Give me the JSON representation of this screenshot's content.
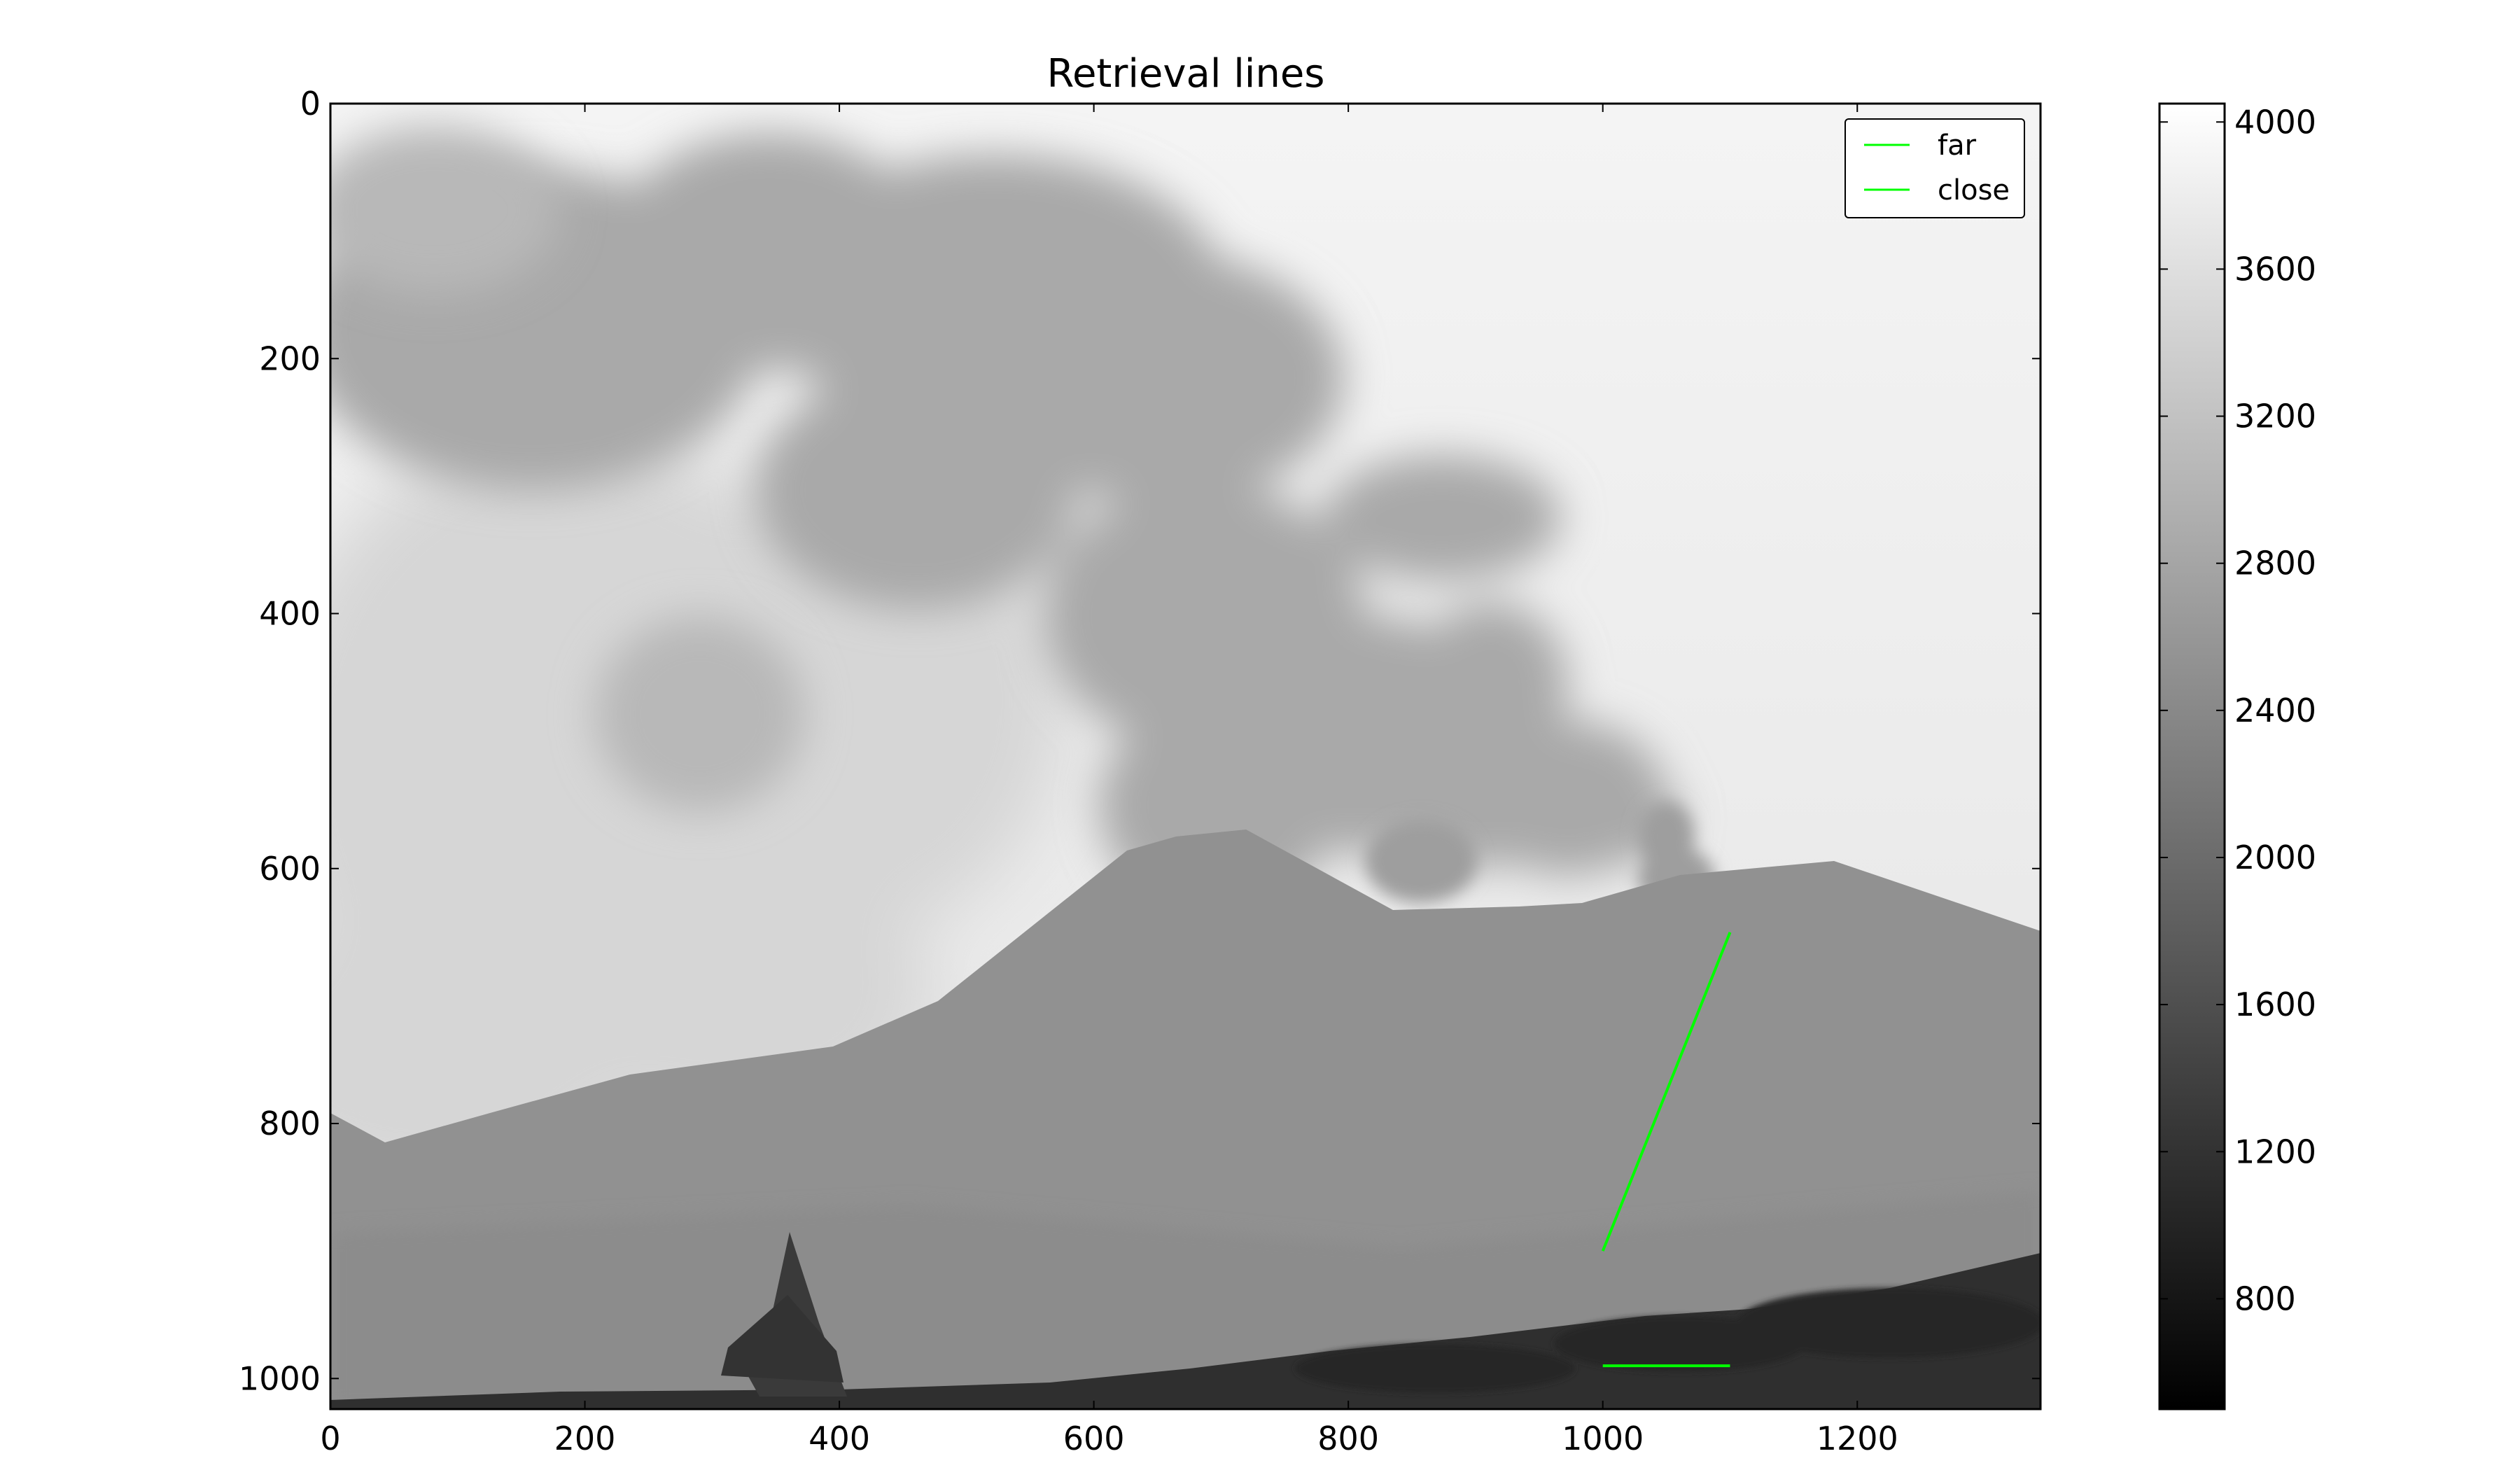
{
  "chart_data": {
    "type": "image",
    "title": "Retrieval lines",
    "colormap": "gray",
    "xlim": [
      0,
      1344
    ],
    "ylim": [
      1024,
      0
    ],
    "x_ticks": [
      0,
      200,
      400,
      600,
      800,
      1000,
      1200
    ],
    "y_ticks": [
      0,
      200,
      400,
      600,
      800,
      1000
    ],
    "colorbar": {
      "range": [
        500,
        4050
      ],
      "ticks": [
        800,
        1200,
        1600,
        2000,
        2400,
        2800,
        3200,
        3600,
        4000
      ]
    },
    "series": [
      {
        "name": "far",
        "color": "#00ff00",
        "points": [
          [
            1000,
            900
          ],
          [
            1100,
            650
          ]
        ]
      },
      {
        "name": "close",
        "color": "#00ff00",
        "points": [
          [
            1000,
            990
          ],
          [
            1100,
            990
          ]
        ]
      }
    ],
    "legend": "top-right"
  }
}
